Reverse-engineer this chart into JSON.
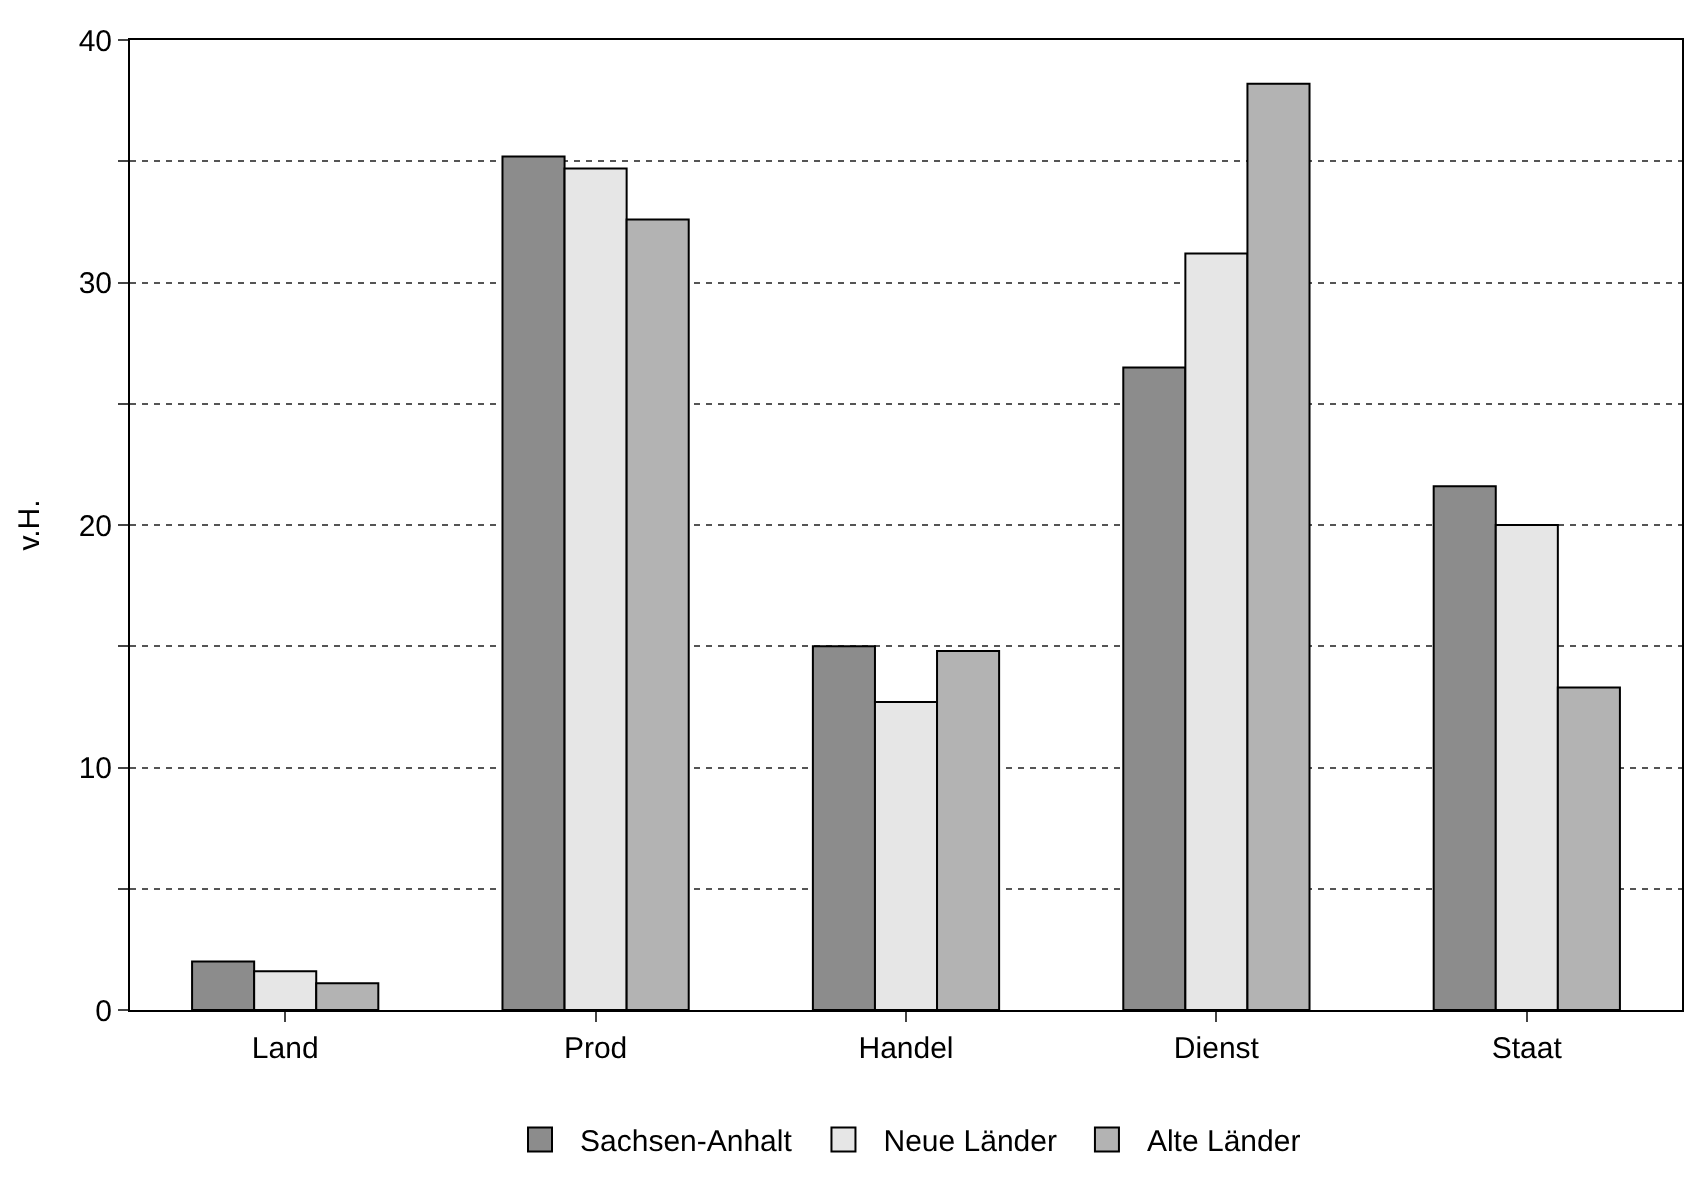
{
  "chart_data": {
    "type": "bar",
    "ylabel": "v.H.",
    "categories": [
      "Land",
      "Prod",
      "Handel",
      "Dienst",
      "Staat"
    ],
    "series": [
      {
        "name": "Sachsen-Anhalt",
        "color": "#8c8c8c",
        "values": [
          2.0,
          35.2,
          15.0,
          26.5,
          21.6
        ]
      },
      {
        "name": "Neue Länder",
        "color": "#e6e6e6",
        "values": [
          1.6,
          34.7,
          12.7,
          31.2,
          20.0
        ]
      },
      {
        "name": "Alte Länder",
        "color": "#b3b3b3",
        "values": [
          1.1,
          32.6,
          14.8,
          38.2,
          13.3
        ]
      }
    ],
    "ylim": [
      0,
      40
    ],
    "yticks": [
      0,
      {
        "value": 5,
        "label": null
      },
      10,
      {
        "value": 15,
        "label": null
      },
      20,
      {
        "value": 25,
        "label": null
      },
      30,
      {
        "value": 35,
        "label": null
      },
      40
    ],
    "grid": "y",
    "legend": "bottom"
  }
}
